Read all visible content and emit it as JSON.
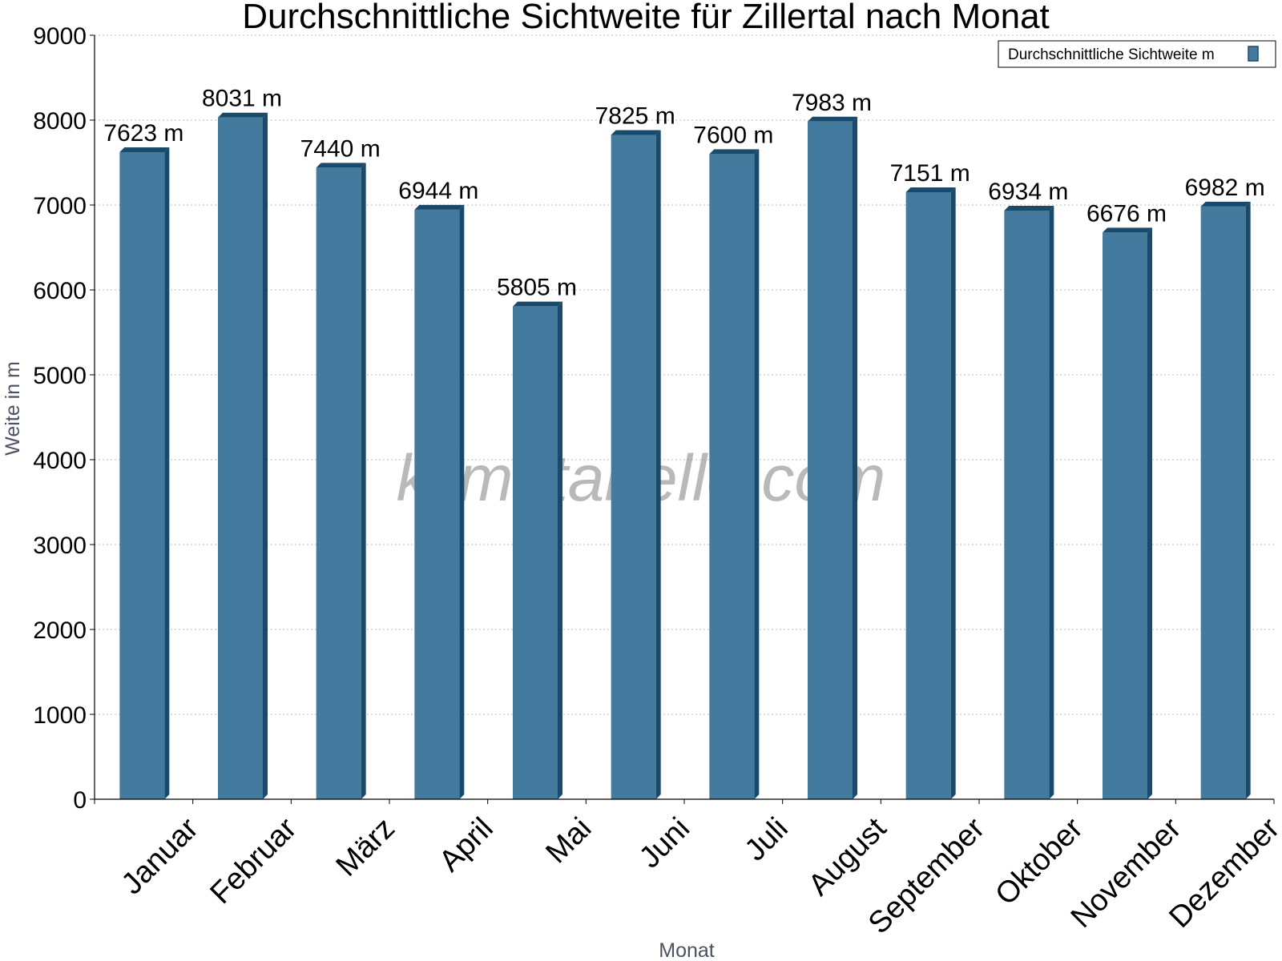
{
  "chart_data": {
    "type": "bar",
    "title": "Durchschnittliche Sichtweite für Zillertal nach Monat",
    "xlabel": "Monat",
    "ylabel": "Weite in m",
    "ylim": [
      0,
      9000
    ],
    "yticks": [
      0,
      1000,
      2000,
      3000,
      4000,
      5000,
      6000,
      7000,
      8000,
      9000
    ],
    "grid": true,
    "legend_position": "top-right",
    "categories": [
      "Januar",
      "Februar",
      "März",
      "April",
      "Mai",
      "Juni",
      "Juli",
      "August",
      "September",
      "Oktober",
      "November",
      "Dezember"
    ],
    "series": [
      {
        "name": "Durchschnittliche Sichtweite m",
        "values": [
          7623,
          8031,
          7440,
          6944,
          5805,
          7825,
          7600,
          7983,
          7151,
          6934,
          6676,
          6982
        ],
        "labels": [
          "7623 m",
          "8031 m",
          "7440 m",
          "6944 m",
          "5805 m",
          "7825 m",
          "7600 m",
          "7983 m",
          "7151 m",
          "6934 m",
          "6676 m",
          "6982 m"
        ]
      }
    ],
    "colors": {
      "bar_front": "#447a9e",
      "bar_side": "#1a4a6a",
      "bar_top": "#1a4a6a",
      "grid": "#bbbbbb",
      "axis": "#000000"
    },
    "watermark": "klimatabelle.com"
  }
}
